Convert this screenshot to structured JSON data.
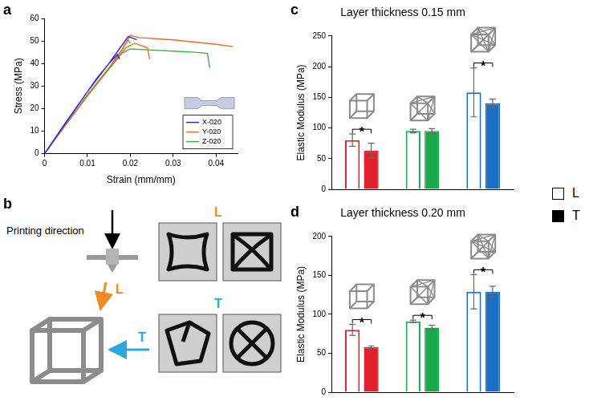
{
  "panel_labels": [
    "a",
    "b",
    "c",
    "d"
  ],
  "chart_data": [
    {
      "type": "line",
      "x_label": "Strain (mm/mm)",
      "y_label": "Stress (MPa)",
      "xlim": [
        0,
        0.045
      ],
      "xticks": [
        0,
        0.01,
        0.02,
        0.03,
        0.04
      ],
      "ylim": [
        0,
        60
      ],
      "yticks": [
        0,
        10,
        20,
        30,
        40,
        50,
        60
      ],
      "grid": false,
      "legend": "bottom right",
      "series": [
        {
          "name": "X-020",
          "color": "#2a2ad8",
          "x": [
            0,
            0.004,
            0.008,
            0.012,
            0.015,
            0.017,
            0.0175,
            null,
            0,
            0.005,
            0.01,
            0.015,
            0.018,
            0.0195,
            0.021,
            0.0215
          ],
          "values": [
            0,
            11,
            22,
            33,
            40,
            44,
            42,
            null,
            0,
            14,
            27.5,
            40,
            48,
            52,
            51,
            50.5
          ]
        },
        {
          "name": "Y-020",
          "color": "#f0682a",
          "x": [
            0,
            0.005,
            0.01,
            0.015,
            0.018,
            0.02,
            0.022,
            0.026,
            0.03,
            0.035,
            0.04,
            0.044,
            null,
            0,
            0.005,
            0.01,
            0.015,
            0.019,
            0.021,
            0.024,
            0.0245
          ],
          "values": [
            0,
            13,
            26,
            38,
            46,
            52.5,
            51.5,
            51,
            50.5,
            49.5,
            48.5,
            47.5,
            null,
            0,
            13,
            26,
            38,
            47,
            49,
            47,
            42
          ]
        },
        {
          "name": "Z-020",
          "color": "#33b44a",
          "x": [
            0,
            0.005,
            0.01,
            0.015,
            0.018,
            0.02,
            0.025,
            0.03,
            0.035,
            0.038,
            0.0385,
            null,
            0,
            0.005,
            0.01,
            0.015,
            0.018,
            0.0195,
            0.02
          ],
          "values": [
            0,
            13,
            25.5,
            37.5,
            44.5,
            46.5,
            46,
            45.5,
            45,
            44.5,
            38,
            null,
            0,
            13,
            26,
            38,
            46,
            50.5,
            49
          ]
        }
      ]
    },
    {
      "type": "bar",
      "title": "Layer thickness 0.15 mm",
      "y_label": "Elastic Modulus (MPa)",
      "categories": [
        null,
        null,
        null
      ],
      "colors": [
        "#e0202a",
        "#19a84a",
        "#1a6fc4"
      ],
      "ylim": [
        0,
        250
      ],
      "yticks": [
        0,
        50,
        100,
        150,
        200,
        250
      ],
      "grid": false,
      "tick_labels": "y",
      "series": [
        {
          "name": "L",
          "marker": "open",
          "values": [
            80,
            95,
            158
          ],
          "errors": [
            10,
            3,
            40
          ]
        },
        {
          "name": "T",
          "marker": "filled",
          "values": [
            63,
            95,
            140
          ],
          "errors": [
            12,
            4,
            7
          ]
        }
      ],
      "annotations": [
        {
          "text": "*",
          "category": 0
        },
        {
          "text": "*",
          "category": 2
        }
      ]
    },
    {
      "type": "bar",
      "title": "Layer thickness 0.20 mm",
      "y_label": "Elastic Modulus (MPa)",
      "categories": [
        null,
        null,
        null
      ],
      "colors": [
        "#e0202a",
        "#19a84a",
        "#1a6fc4"
      ],
      "ylim": [
        0,
        200
      ],
      "yticks": [
        0,
        50,
        100,
        150,
        200
      ],
      "grid": false,
      "tick_labels": "y",
      "series": [
        {
          "name": "L",
          "marker": "open",
          "values": [
            80,
            91,
            129
          ],
          "errors": [
            7,
            1.5,
            22
          ]
        },
        {
          "name": "T",
          "marker": "filled",
          "values": [
            58,
            83,
            129
          ],
          "errors": [
            1.5,
            3,
            7
          ]
        }
      ],
      "annotations": [
        {
          "text": "*",
          "category": 0
        },
        {
          "text": "*",
          "category": 1
        },
        {
          "text": "*",
          "category": 2
        }
      ]
    }
  ],
  "diagram": {
    "label": "Printing direction",
    "directions": [
      {
        "name": "L",
        "color": "#f08a24"
      },
      {
        "name": "T",
        "color": "#2aa7e0"
      }
    ]
  }
}
